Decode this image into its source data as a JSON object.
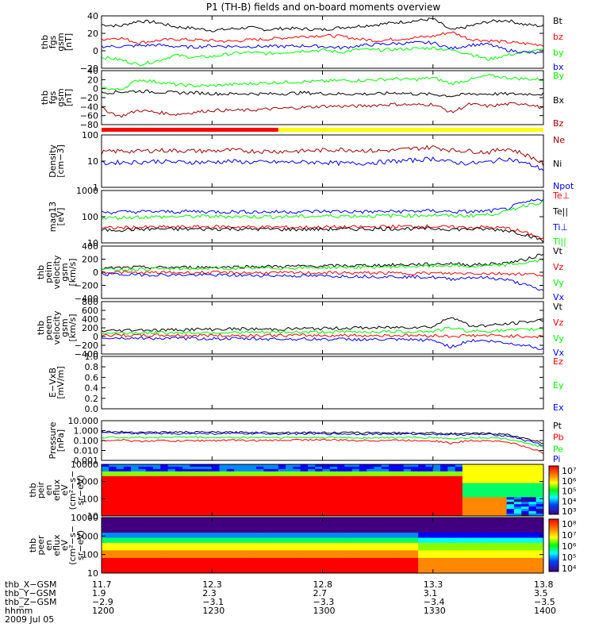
{
  "title": "P1 (TH-B) fields and on-board moments overview",
  "colors": {
    "black": "#000000",
    "red": "#ff0000",
    "green": "#00ff00",
    "blue": "#0000ff",
    "darkred": "#a00000",
    "yellow": "#ffff00"
  },
  "chart_data": [
    {
      "type": "line",
      "ylabel": [
        "thb",
        "fgs",
        "gsm",
        "[nT]"
      ],
      "yticks": [
        "40",
        "20",
        "0",
        "−20"
      ],
      "ylim": [
        -30,
        42
      ],
      "series": [
        {
          "name": "Bt",
          "color": "black",
          "values": [
            30,
            28,
            35,
            33,
            27,
            25,
            22,
            24,
            26,
            23,
            25,
            24,
            23,
            26,
            28,
            30,
            33,
            35,
            38,
            22,
            28,
            34,
            36,
            30,
            28
          ]
        },
        {
          "name": "bz",
          "color": "red",
          "values": [
            10,
            12,
            5,
            8,
            10,
            9,
            8,
            7,
            9,
            10,
            12,
            14,
            15,
            14,
            10,
            8,
            10,
            12,
            14,
            20,
            10,
            8,
            6,
            4,
            2
          ]
        },
        {
          "name": "by",
          "color": "green",
          "values": [
            -15,
            -18,
            -25,
            -20,
            -12,
            -15,
            -14,
            -10,
            -8,
            -10,
            -8,
            -6,
            -5,
            -8,
            -4,
            -5,
            -4,
            -3,
            -2,
            -5,
            -10,
            -18,
            -12,
            -8,
            -5
          ]
        },
        {
          "name": "bx",
          "color": "blue",
          "values": [
            0,
            0,
            1,
            2,
            0,
            -1,
            1,
            0,
            0,
            0,
            0,
            1,
            0,
            -2,
            1,
            3,
            4,
            5,
            5,
            -3,
            2,
            3,
            -5,
            -8,
            -10
          ]
        }
      ]
    },
    {
      "type": "line",
      "ylabel": [
        "thb",
        "fgs",
        "gsm",
        "[nT]"
      ],
      "yticks": [
        "40",
        "20",
        "0",
        "−20",
        "−40",
        "−60",
        "−80"
      ],
      "ylim": [
        -90,
        42
      ],
      "series": [
        {
          "name": "By",
          "color": "green",
          "values": [
            0,
            -5,
            20,
            15,
            8,
            5,
            5,
            8,
            10,
            12,
            14,
            15,
            16,
            18,
            18,
            20,
            22,
            20,
            25,
            10,
            20,
            30,
            25,
            22,
            20
          ]
        },
        {
          "name": "Bx",
          "color": "black",
          "values": [
            -12,
            -10,
            -8,
            -10,
            -12,
            -12,
            -14,
            -15,
            -14,
            -15,
            -14,
            -12,
            -14,
            -15,
            -15,
            -15,
            -12,
            -15,
            -16,
            -20,
            -15,
            -15,
            -15,
            -15,
            -15
          ]
        },
        {
          "name": "Bz",
          "color": "darkred",
          "values": [
            -50,
            -70,
            -55,
            -60,
            -65,
            -60,
            -55,
            -55,
            -55,
            -52,
            -50,
            -48,
            -45,
            -45,
            -45,
            -42,
            -40,
            -42,
            -40,
            -60,
            -40,
            -45,
            -40,
            -38,
            -50
          ]
        }
      ]
    },
    {
      "type": "line",
      "yscale": "log",
      "ylabel": [
        "Density",
        "[cm−3]"
      ],
      "yticks": [
        "100",
        "10",
        "1"
      ],
      "ylim": [
        1,
        120
      ],
      "series": [
        {
          "name": "Ne",
          "color": "darkred",
          "values": [
            25,
            28,
            27,
            30,
            29,
            28,
            28,
            30,
            28,
            27,
            27,
            28,
            30,
            32,
            30,
            28,
            30,
            35,
            40,
            30,
            28,
            25,
            35,
            20,
            8
          ]
        },
        {
          "name": "Ni",
          "color": "black",
          "values": []
        },
        {
          "name": "Npot",
          "color": "blue",
          "values": [
            9,
            10,
            10,
            11,
            10,
            10,
            10,
            11,
            10,
            10,
            10,
            10,
            10,
            9,
            9,
            10,
            11,
            12,
            14,
            10,
            9,
            10,
            14,
            9,
            5
          ]
        }
      ]
    },
    {
      "type": "line",
      "yscale": "log",
      "ylabel": [
        "mag13",
        "[eV]"
      ],
      "yticks": [
        "1000",
        "100",
        "10"
      ],
      "ylim": [
        10,
        3000
      ],
      "series": [
        {
          "name": "Te⊥",
          "color": "red",
          "values": [
            50,
            52,
            55,
            55,
            56,
            57,
            58,
            58,
            56,
            55,
            55,
            54,
            55,
            55,
            56,
            58,
            60,
            60,
            60,
            55,
            55,
            55,
            50,
            30,
            15
          ]
        },
        {
          "name": "Te||",
          "color": "black",
          "values": [
            40,
            42,
            45,
            46,
            45,
            45,
            46,
            47,
            45,
            45,
            44,
            44,
            45,
            45,
            46,
            47,
            48,
            48,
            48,
            45,
            45,
            45,
            40,
            25,
            12
          ]
        },
        {
          "name": "Ti⊥",
          "color": "blue",
          "values": [
            280,
            290,
            300,
            300,
            300,
            310,
            300,
            300,
            300,
            290,
            300,
            300,
            310,
            310,
            300,
            300,
            310,
            320,
            330,
            300,
            300,
            320,
            400,
            800,
            1200
          ]
        },
        {
          "name": "Ti||",
          "color": "green",
          "values": [
            150,
            160,
            170,
            170,
            175,
            180,
            180,
            180,
            175,
            175,
            175,
            180,
            185,
            190,
            190,
            190,
            200,
            200,
            210,
            190,
            200,
            220,
            300,
            600,
            900
          ]
        }
      ]
    },
    {
      "type": "line",
      "ylabel": [
        "thb",
        "peim",
        "velocity",
        "gsm",
        "[km/s]"
      ],
      "yticks": [
        "400",
        "200",
        "0",
        "−200",
        "−400"
      ],
      "ylim": [
        -420,
        420
      ],
      "series": [
        {
          "name": "Vt",
          "color": "black",
          "values": [
            60,
            70,
            80,
            75,
            80,
            80,
            82,
            85,
            90,
            92,
            95,
            98,
            100,
            105,
            108,
            112,
            118,
            125,
            130,
            140,
            120,
            130,
            150,
            200,
            300
          ]
        },
        {
          "name": "Vz",
          "color": "red",
          "values": [
            0,
            0,
            -10,
            -5,
            -5,
            -5,
            -5,
            -8,
            -8,
            -8,
            -10,
            -10,
            -10,
            -10,
            -12,
            -12,
            -15,
            -15,
            -15,
            -20,
            -15,
            -20,
            -20,
            -30,
            -40
          ]
        },
        {
          "name": "Vy",
          "color": "green",
          "values": [
            40,
            45,
            50,
            55,
            55,
            60,
            60,
            62,
            65,
            68,
            70,
            72,
            75,
            80,
            82,
            85,
            90,
            95,
            100,
            110,
            90,
            100,
            120,
            150,
            200
          ]
        },
        {
          "name": "Vx",
          "color": "blue",
          "values": [
            -30,
            -35,
            -40,
            -40,
            -42,
            -45,
            -45,
            -48,
            -50,
            -52,
            -55,
            -58,
            -60,
            -62,
            -65,
            -68,
            -70,
            -75,
            -80,
            -110,
            -80,
            -90,
            -120,
            -200,
            -300
          ]
        }
      ]
    },
    {
      "type": "line",
      "ylabel": [
        "thb",
        "peem",
        "velocity",
        "gsm",
        "[km/s]"
      ],
      "yticks": [
        "800",
        "600",
        "400",
        "200",
        "0",
        "−200",
        "−400"
      ],
      "ylim": [
        -480,
        880
      ],
      "series": [
        {
          "name": "Vt",
          "color": "black",
          "values": [
            120,
            130,
            150,
            140,
            150,
            160,
            160,
            170,
            170,
            160,
            170,
            180,
            180,
            190,
            200,
            200,
            210,
            220,
            230,
            500,
            250,
            260,
            300,
            350,
            400
          ]
        },
        {
          "name": "Vz",
          "color": "red",
          "values": [
            10,
            10,
            0,
            5,
            5,
            0,
            5,
            0,
            0,
            5,
            0,
            5,
            0,
            5,
            0,
            0,
            5,
            0,
            0,
            -20,
            0,
            0,
            -10,
            -20,
            -30
          ]
        },
        {
          "name": "Vy",
          "color": "green",
          "values": [
            60,
            65,
            70,
            70,
            72,
            75,
            78,
            80,
            80,
            82,
            85,
            88,
            90,
            92,
            95,
            98,
            100,
            105,
            110,
            200,
            110,
            120,
            130,
            150,
            180
          ]
        },
        {
          "name": "Vx",
          "color": "blue",
          "values": [
            -60,
            -65,
            -70,
            -72,
            -75,
            -78,
            -80,
            -82,
            -85,
            -88,
            -90,
            -92,
            -95,
            -98,
            -100,
            -105,
            -110,
            -115,
            -120,
            -300,
            -130,
            -140,
            -200,
            -250,
            -350
          ]
        }
      ]
    },
    {
      "type": "line",
      "ylabel": [
        "E−VxB",
        "[mV/m]"
      ],
      "yticks": [
        "1.0",
        "0.8",
        "0.6",
        "0.4",
        "0.2",
        "0.0"
      ],
      "ylim": [
        0,
        1
      ],
      "series": [
        {
          "name": "Ez",
          "color": "red",
          "values": []
        },
        {
          "name": "Ey",
          "color": "green",
          "values": []
        },
        {
          "name": "Ex",
          "color": "blue",
          "values": []
        }
      ]
    },
    {
      "type": "line",
      "yscale": "log",
      "ylabel": [
        "Pressure",
        "[nPa]"
      ],
      "yticks": [
        "10.000",
        "1.000",
        "0.100",
        "0.010",
        "0.001"
      ],
      "ylim": [
        0.001,
        10
      ],
      "series": [
        {
          "name": "Pt",
          "color": "black",
          "values": [
            0.8,
            0.75,
            0.7,
            0.7,
            0.72,
            0.7,
            0.7,
            0.68,
            0.68,
            0.66,
            0.65,
            0.65,
            0.64,
            0.63,
            0.62,
            0.62,
            0.6,
            0.6,
            0.58,
            0.5,
            0.5,
            0.55,
            0.4,
            0.15,
            0.05
          ]
        },
        {
          "name": "Pb",
          "color": "red",
          "values": [
            0.1,
            0.12,
            0.08,
            0.1,
            0.09,
            0.1,
            0.1,
            0.11,
            0.1,
            0.1,
            0.11,
            0.12,
            0.12,
            0.11,
            0.1,
            0.1,
            0.11,
            0.1,
            0.1,
            0.05,
            0.1,
            0.1,
            0.07,
            0.02,
            0.005
          ]
        },
        {
          "name": "Pe",
          "color": "green",
          "values": [
            0.2,
            0.22,
            0.2,
            0.21,
            0.22,
            0.22,
            0.2,
            0.2,
            0.2,
            0.21,
            0.2,
            0.2,
            0.2,
            0.2,
            0.19,
            0.19,
            0.2,
            0.2,
            0.2,
            0.15,
            0.2,
            0.2,
            0.15,
            0.05,
            0.02
          ]
        },
        {
          "name": "Pi",
          "color": "blue",
          "values": [
            0.6,
            0.55,
            0.5,
            0.5,
            0.52,
            0.5,
            0.5,
            0.5,
            0.5,
            0.48,
            0.48,
            0.48,
            0.47,
            0.47,
            0.46,
            0.46,
            0.45,
            0.45,
            0.44,
            0.4,
            0.4,
            0.42,
            0.3,
            0.1,
            0.03
          ]
        }
      ]
    },
    {
      "type": "heatmap",
      "ylabel": [
        "thb",
        "peir",
        "en",
        "eflux",
        "eV",
        "(cm²−s−",
        "sr−eV)"
      ],
      "yscale": "log",
      "ylim": [
        10,
        20000
      ],
      "yticks": [
        "10000",
        "1000",
        "100",
        "10"
      ],
      "colorbar_ticks": [
        "10⁷",
        "10⁶",
        "10⁵",
        "10⁴",
        "10³"
      ]
    },
    {
      "type": "heatmap",
      "ylabel": [
        "thb",
        "peer",
        "en",
        "eflux",
        "eV",
        "(cm²−s−",
        "sr−eV)"
      ],
      "yscale": "log",
      "ylim": [
        7,
        20000
      ],
      "yticks": [
        "10000",
        "1000",
        "100",
        "10"
      ],
      "colorbar_ticks": [
        "10⁸",
        "10⁷",
        "10⁶",
        "10⁵",
        "10⁴"
      ]
    }
  ],
  "mode_bar": {
    "red_fraction": 0.4
  },
  "x_axis": {
    "ticks": [
      "1200",
      "1230",
      "1300",
      "1330",
      "1400"
    ],
    "rows": [
      {
        "label": "thb_X−GSM",
        "values": [
          "11.7",
          "12.3",
          "12.8",
          "13.3",
          "13.8"
        ]
      },
      {
        "label": "thb_Y−GSM",
        "values": [
          "1.9",
          "2.3",
          "2.7",
          "3.1",
          "3.5"
        ]
      },
      {
        "label": "thb_Z−GSM",
        "values": [
          "−2.9",
          "−3.1",
          "−3.3",
          "−3.4",
          "−3.5"
        ]
      },
      {
        "label": "hhmm",
        "values": [
          "1200",
          "1230",
          "1300",
          "1330",
          "1400"
        ]
      }
    ],
    "date": "2009 Jul 05"
  }
}
